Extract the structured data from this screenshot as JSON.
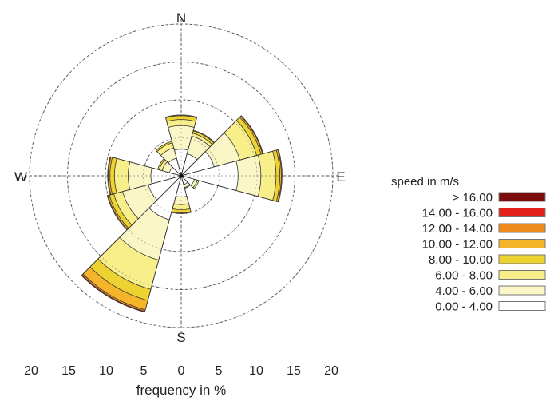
{
  "chart_data": {
    "type": "wind-rose",
    "directions": [
      "N",
      "E",
      "S",
      "W"
    ],
    "xlabel": "frequency in %",
    "axis_ticks": [
      "20",
      "15",
      "10",
      "5",
      "0",
      "5",
      "10",
      "15",
      "20"
    ],
    "radial_max": 20,
    "rings": [
      5,
      10,
      15,
      20
    ],
    "grid": true,
    "legend": {
      "title": "speed in m/s",
      "position": "right",
      "bins": [
        {
          "label": "> 16.00",
          "color": "#7b0d0d"
        },
        {
          "label": "14.00 - 16.00",
          "color": "#e3201b"
        },
        {
          "label": "12.00 - 14.00",
          "color": "#ef8a1f"
        },
        {
          "label": "10.00 - 12.00",
          "color": "#f5b52b"
        },
        {
          "label": "8.00 - 10.00",
          "color": "#ecd332"
        },
        {
          "label": "6.00 -  8.00",
          "color": "#f8ef8a"
        },
        {
          "label": "4.00 -  6.00",
          "color": "#fbf6c6"
        },
        {
          "label": "0.00 -  4.00",
          "color": "#ffffff"
        }
      ]
    },
    "sector_width_deg": 30,
    "sectors": [
      {
        "dir_deg": 0,
        "cumulative": [
          3.5,
          6.6,
          7.4,
          7.9,
          8.0,
          8.0,
          8.0,
          8.0
        ]
      },
      {
        "dir_deg": 30,
        "cumulative": [
          3.0,
          5.4,
          5.8,
          6.1,
          6.2,
          6.2,
          6.2,
          6.2
        ]
      },
      {
        "dir_deg": 60,
        "cumulative": [
          4.5,
          8.0,
          10.3,
          10.9,
          11.1,
          11.2,
          11.2,
          11.2
        ]
      },
      {
        "dir_deg": 90,
        "cumulative": [
          7.5,
          10.5,
          12.5,
          13.0,
          13.2,
          13.3,
          13.3,
          13.3
        ]
      },
      {
        "dir_deg": 120,
        "cumulative": [
          1.8,
          2.2,
          2.4,
          2.4,
          2.4,
          2.4,
          2.4,
          2.4
        ]
      },
      {
        "dir_deg": 150,
        "cumulative": [
          1.2,
          1.6,
          1.7,
          1.7,
          1.7,
          1.7,
          1.7,
          1.7
        ]
      },
      {
        "dir_deg": 180,
        "cumulative": [
          2.8,
          3.8,
          4.5,
          4.9,
          5.0,
          5.0,
          5.0,
          5.0
        ]
      },
      {
        "dir_deg": 210,
        "cumulative": [
          6.0,
          11.5,
          15.5,
          17.0,
          18.3,
          18.5,
          18.6,
          18.6
        ]
      },
      {
        "dir_deg": 240,
        "cumulative": [
          4.5,
          8.0,
          9.2,
          9.8,
          10.0,
          10.1,
          10.1,
          10.1
        ]
      },
      {
        "dir_deg": 270,
        "cumulative": [
          4.0,
          7.0,
          8.8,
          9.4,
          9.6,
          9.7,
          9.7,
          9.7
        ]
      },
      {
        "dir_deg": 300,
        "cumulative": [
          1.6,
          2.6,
          3.0,
          3.2,
          3.2,
          3.2,
          3.2,
          3.2
        ]
      },
      {
        "dir_deg": 330,
        "cumulative": [
          2.4,
          3.8,
          4.5,
          4.7,
          4.7,
          4.7,
          4.7,
          4.7
        ]
      }
    ]
  }
}
